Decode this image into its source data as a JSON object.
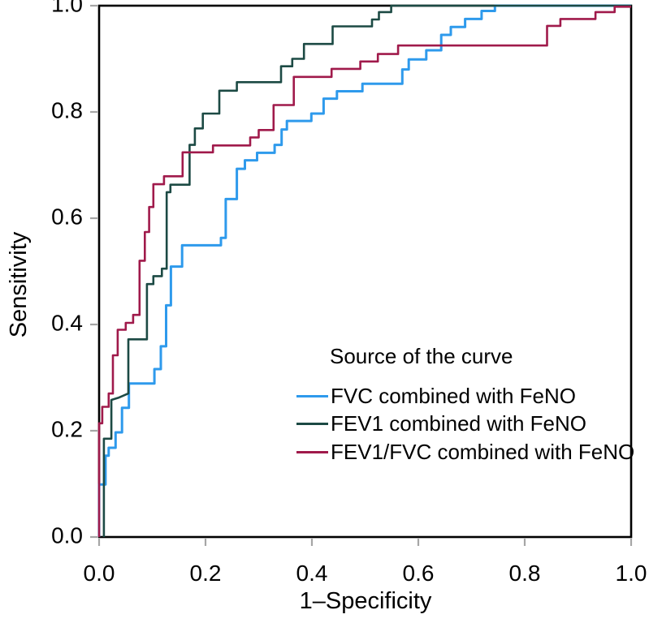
{
  "axes": {
    "x_label": "1–Specificity",
    "y_label": "Sensitivity",
    "frame_color": "#000000",
    "tick_color": "#a6a6a6",
    "x_ticks": [
      {
        "v": 0.0,
        "label": "0.0"
      },
      {
        "v": 0.2,
        "label": "0.2"
      },
      {
        "v": 0.4,
        "label": "0.4"
      },
      {
        "v": 0.6,
        "label": "0.6"
      },
      {
        "v": 0.8,
        "label": "0.8"
      },
      {
        "v": 1.0,
        "label": "1.0"
      }
    ],
    "y_ticks": [
      {
        "v": 0.0,
        "label": "0.0"
      },
      {
        "v": 0.2,
        "label": "0.2"
      },
      {
        "v": 0.4,
        "label": "0.4"
      },
      {
        "v": 0.6,
        "label": "0.6"
      },
      {
        "v": 0.8,
        "label": "0.8"
      },
      {
        "v": 1.0,
        "label": "1.0"
      }
    ]
  },
  "legend": {
    "title": "Source of the curve",
    "items": [
      {
        "label": "FVC combined with FeNO",
        "color": "#2e9aec"
      },
      {
        "label": "FEV1 combined with FeNO",
        "color": "#1c4a44"
      },
      {
        "label": "FEV1/FVC combined with FeNO",
        "color": "#a01a4b"
      }
    ]
  },
  "chart_data": {
    "type": "line",
    "subtype": "roc-step-curves",
    "title": "",
    "xlabel": "1–Specificity",
    "ylabel": "Sensitivity",
    "xlim": [
      0,
      1
    ],
    "ylim": [
      0,
      1
    ],
    "grid": false,
    "legend_position": "inside lower-right",
    "legend_title": "Source of the curve",
    "series": [
      {
        "name": "FVC combined with FeNO",
        "color": "#2e9aec",
        "width": 3,
        "points": [
          [
            0,
            0
          ],
          [
            0,
            0.099
          ],
          [
            0.012,
            0.099
          ],
          [
            0.012,
            0.153
          ],
          [
            0.018,
            0.153
          ],
          [
            0.018,
            0.168
          ],
          [
            0.031,
            0.168
          ],
          [
            0.031,
            0.197
          ],
          [
            0.043,
            0.197
          ],
          [
            0.043,
            0.243
          ],
          [
            0.056,
            0.243
          ],
          [
            0.056,
            0.289
          ],
          [
            0.104,
            0.289
          ],
          [
            0.104,
            0.316
          ],
          [
            0.116,
            0.316
          ],
          [
            0.116,
            0.359
          ],
          [
            0.126,
            0.359
          ],
          [
            0.126,
            0.436
          ],
          [
            0.135,
            0.436
          ],
          [
            0.135,
            0.509
          ],
          [
            0.156,
            0.509
          ],
          [
            0.156,
            0.549
          ],
          [
            0.229,
            0.549
          ],
          [
            0.229,
            0.563
          ],
          [
            0.238,
            0.563
          ],
          [
            0.238,
            0.636
          ],
          [
            0.259,
            0.636
          ],
          [
            0.259,
            0.693
          ],
          [
            0.274,
            0.693
          ],
          [
            0.274,
            0.709
          ],
          [
            0.297,
            0.709
          ],
          [
            0.297,
            0.723
          ],
          [
            0.33,
            0.723
          ],
          [
            0.33,
            0.738
          ],
          [
            0.343,
            0.738
          ],
          [
            0.343,
            0.767
          ],
          [
            0.353,
            0.767
          ],
          [
            0.353,
            0.783
          ],
          [
            0.399,
            0.783
          ],
          [
            0.399,
            0.797
          ],
          [
            0.422,
            0.797
          ],
          [
            0.422,
            0.825
          ],
          [
            0.447,
            0.825
          ],
          [
            0.447,
            0.839
          ],
          [
            0.495,
            0.839
          ],
          [
            0.495,
            0.853
          ],
          [
            0.57,
            0.853
          ],
          [
            0.57,
            0.88
          ],
          [
            0.582,
            0.88
          ],
          [
            0.582,
            0.899
          ],
          [
            0.615,
            0.899
          ],
          [
            0.615,
            0.916
          ],
          [
            0.643,
            0.916
          ],
          [
            0.643,
            0.945
          ],
          [
            0.661,
            0.945
          ],
          [
            0.661,
            0.96
          ],
          [
            0.688,
            0.96
          ],
          [
            0.688,
            0.975
          ],
          [
            0.719,
            0.975
          ],
          [
            0.719,
            0.99
          ],
          [
            0.744,
            0.99
          ],
          [
            0.744,
            1
          ],
          [
            1,
            1
          ]
        ]
      },
      {
        "name": "FEV1 combined with FeNO",
        "color": "#1c4a44",
        "width": 2.6,
        "points": [
          [
            0.009,
            0
          ],
          [
            0.009,
            0.185
          ],
          [
            0.023,
            0.185
          ],
          [
            0.023,
            0.258
          ],
          [
            0.036,
            0.262
          ],
          [
            0.055,
            0.27
          ],
          [
            0.055,
            0.372
          ],
          [
            0.09,
            0.372
          ],
          [
            0.09,
            0.476
          ],
          [
            0.102,
            0.476
          ],
          [
            0.102,
            0.491
          ],
          [
            0.118,
            0.491
          ],
          [
            0.118,
            0.505
          ],
          [
            0.127,
            0.505
          ],
          [
            0.127,
            0.649
          ],
          [
            0.134,
            0.649
          ],
          [
            0.134,
            0.663
          ],
          [
            0.17,
            0.663
          ],
          [
            0.17,
            0.738
          ],
          [
            0.18,
            0.738
          ],
          [
            0.18,
            0.769
          ],
          [
            0.195,
            0.769
          ],
          [
            0.195,
            0.797
          ],
          [
            0.226,
            0.797
          ],
          [
            0.226,
            0.84
          ],
          [
            0.259,
            0.84
          ],
          [
            0.259,
            0.856
          ],
          [
            0.342,
            0.856
          ],
          [
            0.342,
            0.886
          ],
          [
            0.363,
            0.886
          ],
          [
            0.363,
            0.9
          ],
          [
            0.385,
            0.9
          ],
          [
            0.385,
            0.928
          ],
          [
            0.439,
            0.928
          ],
          [
            0.439,
            0.961
          ],
          [
            0.513,
            0.961
          ],
          [
            0.513,
            0.974
          ],
          [
            0.526,
            0.974
          ],
          [
            0.526,
            0.988
          ],
          [
            0.549,
            0.988
          ],
          [
            0.549,
            1
          ],
          [
            1,
            1
          ]
        ]
      },
      {
        "name": "FEV1/FVC combined with FeNO",
        "color": "#a01a4b",
        "width": 2.6,
        "points": [
          [
            0,
            0
          ],
          [
            0,
            0.214
          ],
          [
            0.006,
            0.214
          ],
          [
            0.006,
            0.245
          ],
          [
            0.018,
            0.245
          ],
          [
            0.018,
            0.27
          ],
          [
            0.026,
            0.27
          ],
          [
            0.026,
            0.342
          ],
          [
            0.035,
            0.342
          ],
          [
            0.035,
            0.39
          ],
          [
            0.05,
            0.39
          ],
          [
            0.05,
            0.403
          ],
          [
            0.064,
            0.403
          ],
          [
            0.064,
            0.418
          ],
          [
            0.076,
            0.418
          ],
          [
            0.076,
            0.52
          ],
          [
            0.086,
            0.52
          ],
          [
            0.086,
            0.574
          ],
          [
            0.094,
            0.574
          ],
          [
            0.094,
            0.621
          ],
          [
            0.102,
            0.621
          ],
          [
            0.102,
            0.664
          ],
          [
            0.122,
            0.664
          ],
          [
            0.122,
            0.679
          ],
          [
            0.157,
            0.679
          ],
          [
            0.157,
            0.724
          ],
          [
            0.214,
            0.724
          ],
          [
            0.214,
            0.737
          ],
          [
            0.284,
            0.737
          ],
          [
            0.284,
            0.752
          ],
          [
            0.3,
            0.752
          ],
          [
            0.3,
            0.766
          ],
          [
            0.328,
            0.766
          ],
          [
            0.328,
            0.813
          ],
          [
            0.366,
            0.813
          ],
          [
            0.366,
            0.866
          ],
          [
            0.437,
            0.866
          ],
          [
            0.437,
            0.881
          ],
          [
            0.491,
            0.881
          ],
          [
            0.491,
            0.895
          ],
          [
            0.524,
            0.895
          ],
          [
            0.524,
            0.909
          ],
          [
            0.562,
            0.909
          ],
          [
            0.562,
            0.925
          ],
          [
            0.842,
            0.925
          ],
          [
            0.842,
            0.962
          ],
          [
            0.867,
            0.962
          ],
          [
            0.867,
            0.975
          ],
          [
            0.933,
            0.975
          ],
          [
            0.933,
            0.988
          ],
          [
            0.969,
            0.988
          ],
          [
            0.969,
            0.998
          ],
          [
            1,
            0.998
          ]
        ]
      }
    ]
  }
}
